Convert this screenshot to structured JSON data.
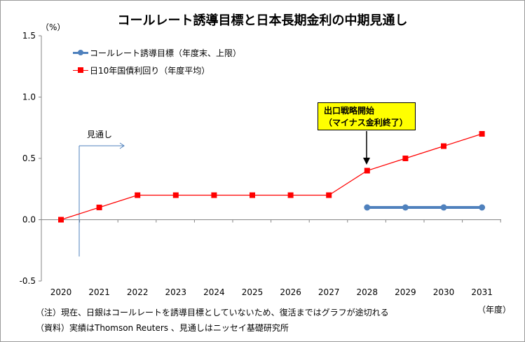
{
  "chart_data": {
    "type": "line",
    "title": "コールレート誘導目標と日本長期金利の中期見通し",
    "y_unit": "（%）",
    "x_unit": "（年度）",
    "x": [
      "2020",
      "2021",
      "2022",
      "2023",
      "2024",
      "2025",
      "2026",
      "2027",
      "2028",
      "2029",
      "2030",
      "2031"
    ],
    "ylim": [
      -0.5,
      1.5
    ],
    "y_ticks": [
      "-0.5",
      "0.0",
      "0.5",
      "1.0",
      "1.5"
    ],
    "grid": false,
    "legend_position": "top-left",
    "series": [
      {
        "name": "コールレート誘導目標（年度末、上限）",
        "color": "#4f81bd",
        "marker": "circle",
        "values": [
          null,
          null,
          null,
          null,
          null,
          null,
          null,
          null,
          0.1,
          0.1,
          0.1,
          0.1
        ]
      },
      {
        "name": "日10年国債利回り（年度平均）",
        "color": "#ff0000",
        "marker": "square",
        "values": [
          0.0,
          0.1,
          0.2,
          0.2,
          0.2,
          0.2,
          0.2,
          0.2,
          0.4,
          0.5,
          0.6,
          0.7
        ]
      }
    ],
    "annotations": {
      "callout_line1": "出口戦略開始",
      "callout_line2": "（マイナス金利終了）",
      "forecast_label": "見通し"
    }
  },
  "notes": {
    "line1": "（注）現在、日銀はコールレートを誘導目標としていないため、復活まではグラフが途切れる",
    "line2": "（資料）実績はThomson Reuters 、見通しはニッセイ基礎研究所"
  }
}
